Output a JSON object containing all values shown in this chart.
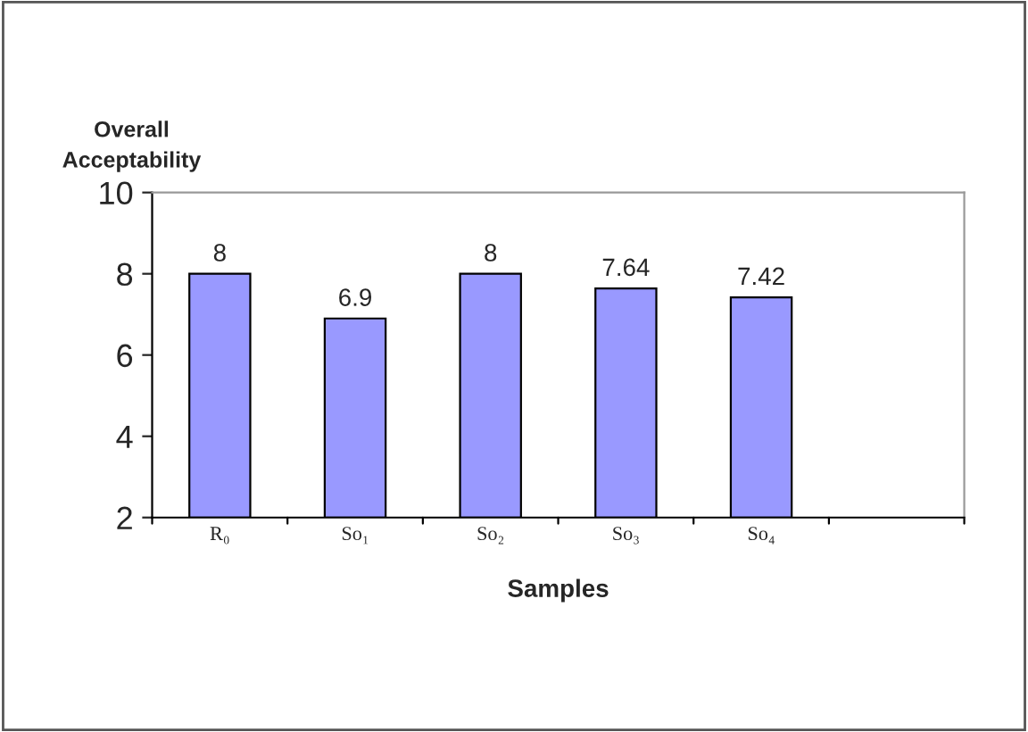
{
  "chart_data": {
    "type": "bar",
    "ylabel": "Overall\nAcceptability",
    "xlabel": "Samples",
    "categories": [
      "R₀",
      "So₁",
      "So₂",
      "So₃",
      "So₄",
      null
    ],
    "values": [
      8,
      6.9,
      8,
      7.64,
      7.42,
      null
    ],
    "color": "#9999ff",
    "ylim": [
      2,
      10
    ],
    "yticks": [
      2,
      4,
      6,
      8,
      10
    ],
    "data_labels": true,
    "grid": false,
    "legend": false
  }
}
